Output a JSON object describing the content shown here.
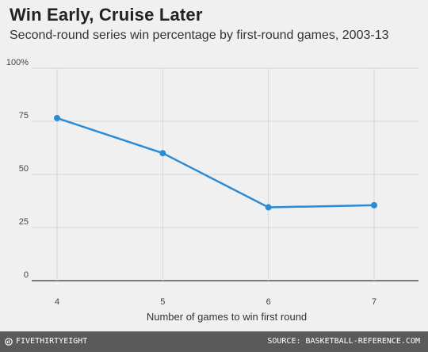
{
  "chart_data": {
    "type": "line",
    "title": "Win Early, Cruise Later",
    "subtitle": "Second-round series win percentage by first-round games, 2003-13",
    "xlabel": "Number of games to win first round",
    "ylabel": "",
    "x": [
      4,
      5,
      6,
      7
    ],
    "x_tick_labels": [
      "4",
      "5",
      "6",
      "7"
    ],
    "y_ticks": [
      0,
      25,
      50,
      75,
      100
    ],
    "y_tick_labels": [
      "0",
      "25",
      "50",
      "75",
      "100%"
    ],
    "ylim": [
      0,
      100
    ],
    "series": [
      {
        "values": [
          76.5,
          60,
          34.5,
          35.5
        ],
        "color": "#2b8cd6"
      }
    ],
    "grid": true,
    "legend": "none"
  },
  "footer": {
    "brand": "FIVETHIRTYEIGHT",
    "brand_icon": "fivethirtyeight-logo-icon",
    "source": "SOURCE: BASKETBALL-REFERENCE.COM"
  }
}
